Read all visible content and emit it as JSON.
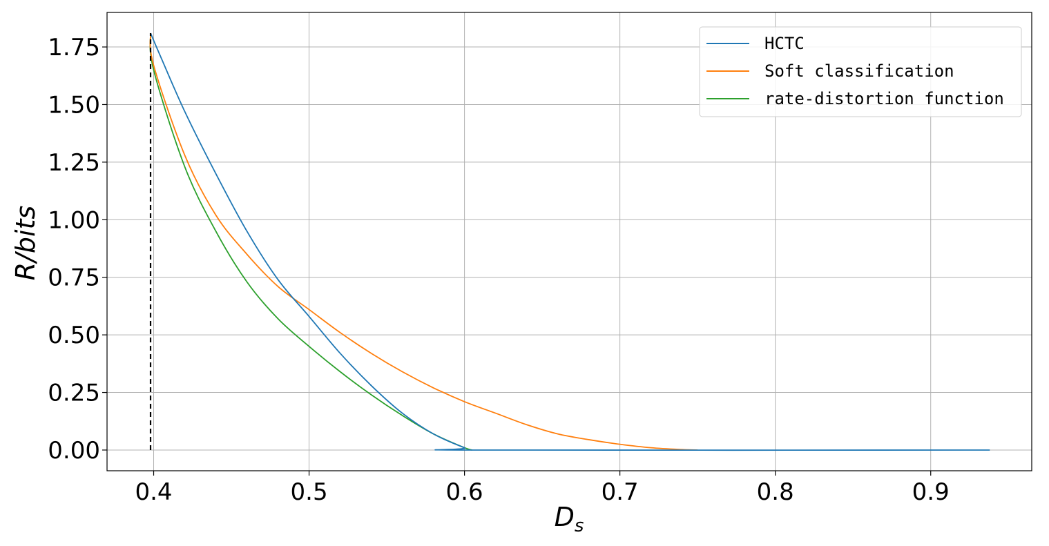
{
  "chart_data": {
    "type": "line",
    "xlabel": "D",
    "xlabel_subscript": "s",
    "ylabel": "R/bits",
    "xlim": [
      0.37,
      0.965
    ],
    "ylim": [
      -0.09,
      1.9
    ],
    "xticks": [
      0.4,
      0.5,
      0.6,
      0.7,
      0.8,
      0.9
    ],
    "xtick_labels": [
      "0.4",
      "0.5",
      "0.6",
      "0.7",
      "0.8",
      "0.9"
    ],
    "yticks": [
      0.0,
      0.25,
      0.5,
      0.75,
      1.0,
      1.25,
      1.5,
      1.75
    ],
    "ytick_labels": [
      "0.00",
      "0.25",
      "0.50",
      "0.75",
      "1.00",
      "1.25",
      "1.50",
      "1.75"
    ],
    "grid": true,
    "legend_position": "top-right",
    "reference_line": {
      "x": 0.398,
      "y_range": [
        0.0,
        1.81
      ],
      "style": "dashed",
      "color": "#000000"
    },
    "series": [
      {
        "name": "HCTC",
        "color": "#1f77b4",
        "points": [
          [
            0.398,
            1.81
          ],
          [
            0.405,
            1.7
          ],
          [
            0.42,
            1.47
          ],
          [
            0.44,
            1.2
          ],
          [
            0.46,
            0.95
          ],
          [
            0.48,
            0.74
          ],
          [
            0.5,
            0.58
          ],
          [
            0.52,
            0.42
          ],
          [
            0.54,
            0.28
          ],
          [
            0.56,
            0.16
          ],
          [
            0.58,
            0.07
          ],
          [
            0.6,
            0.01
          ],
          [
            0.607,
            0.0
          ],
          [
            0.938,
            0.0
          ]
        ]
      },
      {
        "name": "Soft classification",
        "color": "#ff7f0e",
        "points": [
          [
            0.398,
            1.81
          ],
          [
            0.4,
            1.67
          ],
          [
            0.42,
            1.28
          ],
          [
            0.44,
            1.02
          ],
          [
            0.46,
            0.85
          ],
          [
            0.48,
            0.71
          ],
          [
            0.5,
            0.61
          ],
          [
            0.52,
            0.51
          ],
          [
            0.54,
            0.42
          ],
          [
            0.56,
            0.34
          ],
          [
            0.58,
            0.27
          ],
          [
            0.6,
            0.21
          ],
          [
            0.62,
            0.16
          ],
          [
            0.64,
            0.11
          ],
          [
            0.66,
            0.07
          ],
          [
            0.68,
            0.045
          ],
          [
            0.7,
            0.025
          ],
          [
            0.72,
            0.01
          ],
          [
            0.74,
            0.002
          ],
          [
            0.75,
            0.0
          ]
        ]
      },
      {
        "name": "rate-distortion function",
        "color": "#2ca02c",
        "points": [
          [
            0.398,
            1.81
          ],
          [
            0.4,
            1.65
          ],
          [
            0.42,
            1.23
          ],
          [
            0.44,
            0.95
          ],
          [
            0.46,
            0.73
          ],
          [
            0.48,
            0.57
          ],
          [
            0.5,
            0.45
          ],
          [
            0.52,
            0.34
          ],
          [
            0.54,
            0.24
          ],
          [
            0.56,
            0.15
          ],
          [
            0.58,
            0.07
          ],
          [
            0.6,
            0.01
          ],
          [
            0.605,
            0.0
          ]
        ]
      }
    ]
  }
}
